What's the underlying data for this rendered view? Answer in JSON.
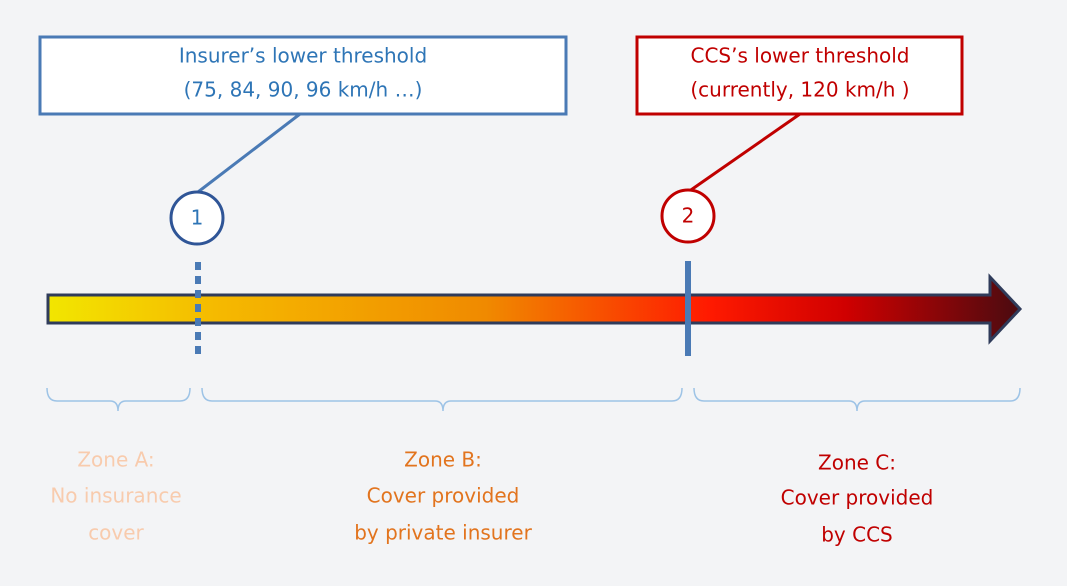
{
  "callouts": [
    {
      "number": "1",
      "title": "Insurer’s lower threshold",
      "detail": "(75, 84, 90, 96 km/h …)"
    },
    {
      "number": "2",
      "title": "CCS’s lower threshold",
      "detail": "(currently, 120 km/h )"
    }
  ],
  "zones": [
    {
      "name": "Zone A:",
      "lines": [
        "No insurance",
        "cover"
      ]
    },
    {
      "name": "Zone B:",
      "lines": [
        "Cover provided",
        "by private insurer"
      ]
    },
    {
      "name": "Zone C:",
      "lines": [
        "Cover provided",
        "by CCS"
      ]
    }
  ]
}
